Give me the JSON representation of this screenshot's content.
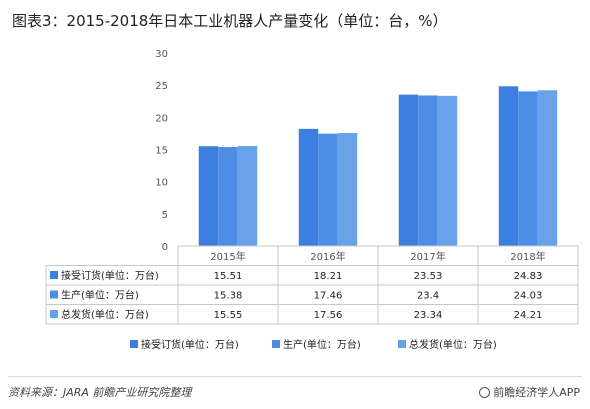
{
  "title": "图表3：2015-2018年日本工业机器人产量变化（单位：台，%）",
  "chart_data": {
    "type": "bar",
    "categories": [
      "2015年",
      "2016年",
      "2017年",
      "2018年"
    ],
    "series": [
      {
        "name": "接受订货(单位：万台)",
        "values": [
          15.51,
          18.21,
          23.53,
          24.83
        ],
        "color": "#3c7fe0"
      },
      {
        "name": "生产(单位：万台)",
        "values": [
          15.38,
          17.46,
          23.4,
          24.03
        ],
        "color": "#4c8de6"
      },
      {
        "name": "总发货(单位：万台)",
        "values": [
          15.55,
          17.56,
          23.34,
          24.21
        ],
        "color": "#6aa2ea"
      }
    ],
    "table_values": [
      [
        "15.51",
        "18.21",
        "23.53",
        "24.83"
      ],
      [
        "15.38",
        "17.46",
        "23.4",
        "24.03"
      ],
      [
        "15.55",
        "17.56",
        "23.34",
        "24.21"
      ]
    ],
    "ylim": [
      0,
      30
    ],
    "yticks": [
      "0",
      "5",
      "10",
      "15",
      "20",
      "25",
      "30"
    ],
    "grid": false,
    "legend_position": "bottom"
  },
  "footer": {
    "source": "资料来源：JARA 前瞻产业研究院整理",
    "brand": "前瞻经济学人APP"
  }
}
